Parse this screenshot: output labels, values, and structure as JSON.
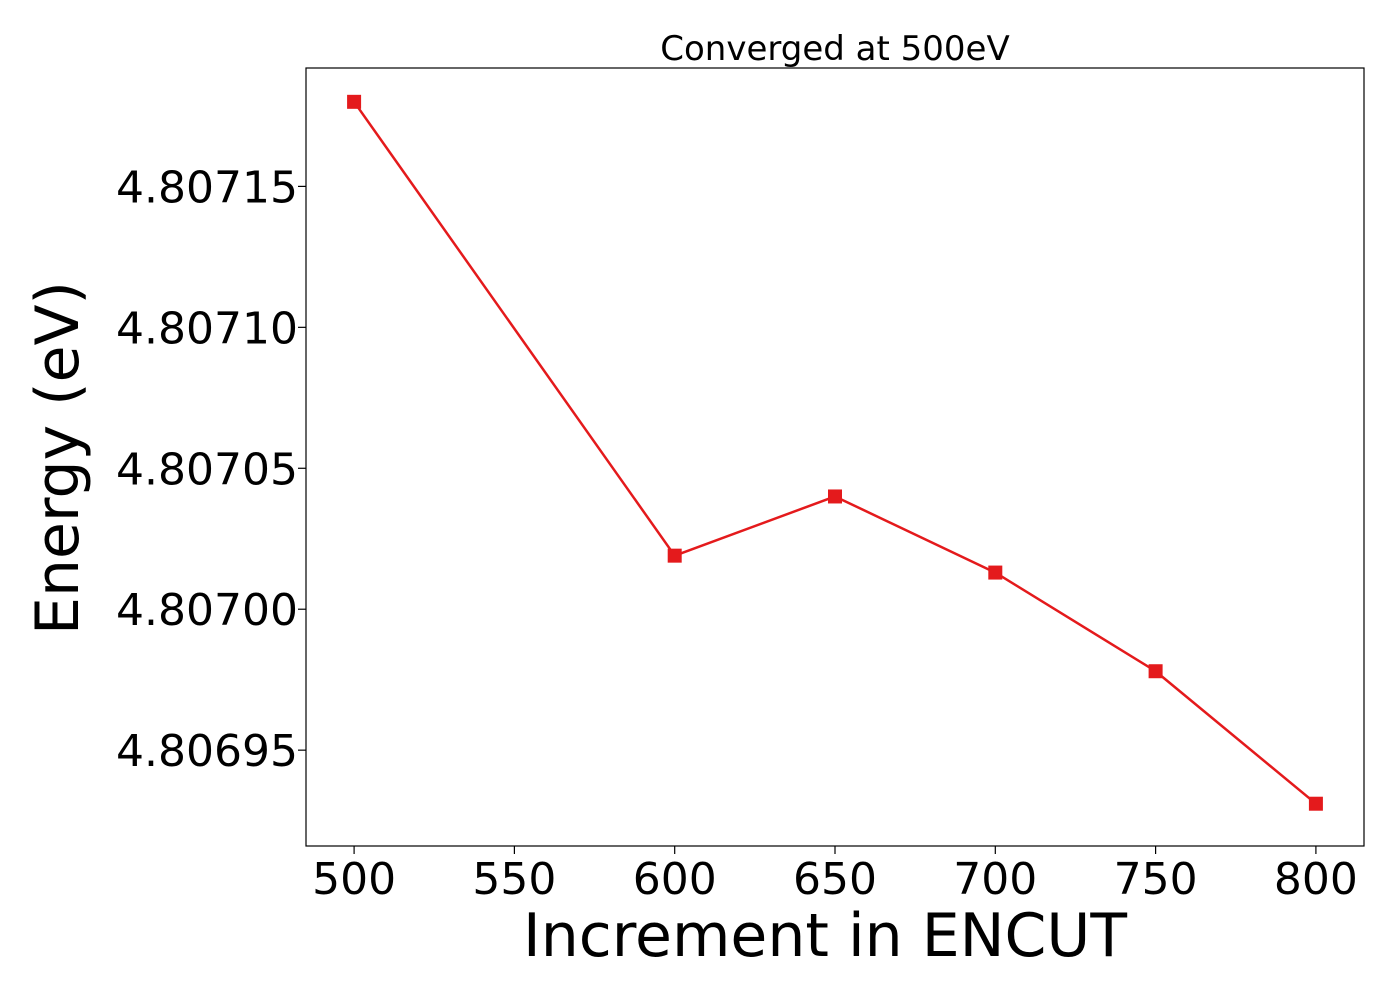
{
  "chart_data": {
    "type": "line",
    "title": "Converged at 500eV",
    "xlabel": "Increment in ENCUT",
    "ylabel": "Energy (eV)",
    "x": [
      500,
      600,
      650,
      700,
      750,
      800
    ],
    "series": [
      {
        "values": [
          4.80718,
          4.807019,
          4.80704,
          4.807013,
          4.806978,
          4.806931
        ],
        "color": "#e41a1c",
        "marker": "square"
      }
    ],
    "xlim": [
      485,
      815
    ],
    "ylim": [
      4.806916,
      4.807192
    ],
    "xticks": [
      500,
      550,
      600,
      650,
      700,
      750,
      800
    ],
    "xtick_labels": [
      "500",
      "550",
      "600",
      "650",
      "700",
      "750",
      "800"
    ],
    "yticks": [
      4.80695,
      4.807,
      4.80705,
      4.8071,
      4.80715
    ],
    "ytick_labels": [
      "4.80695",
      "4.80700",
      "4.80705",
      "4.80710",
      "4.80715"
    ],
    "grid": false,
    "legend": "none"
  }
}
